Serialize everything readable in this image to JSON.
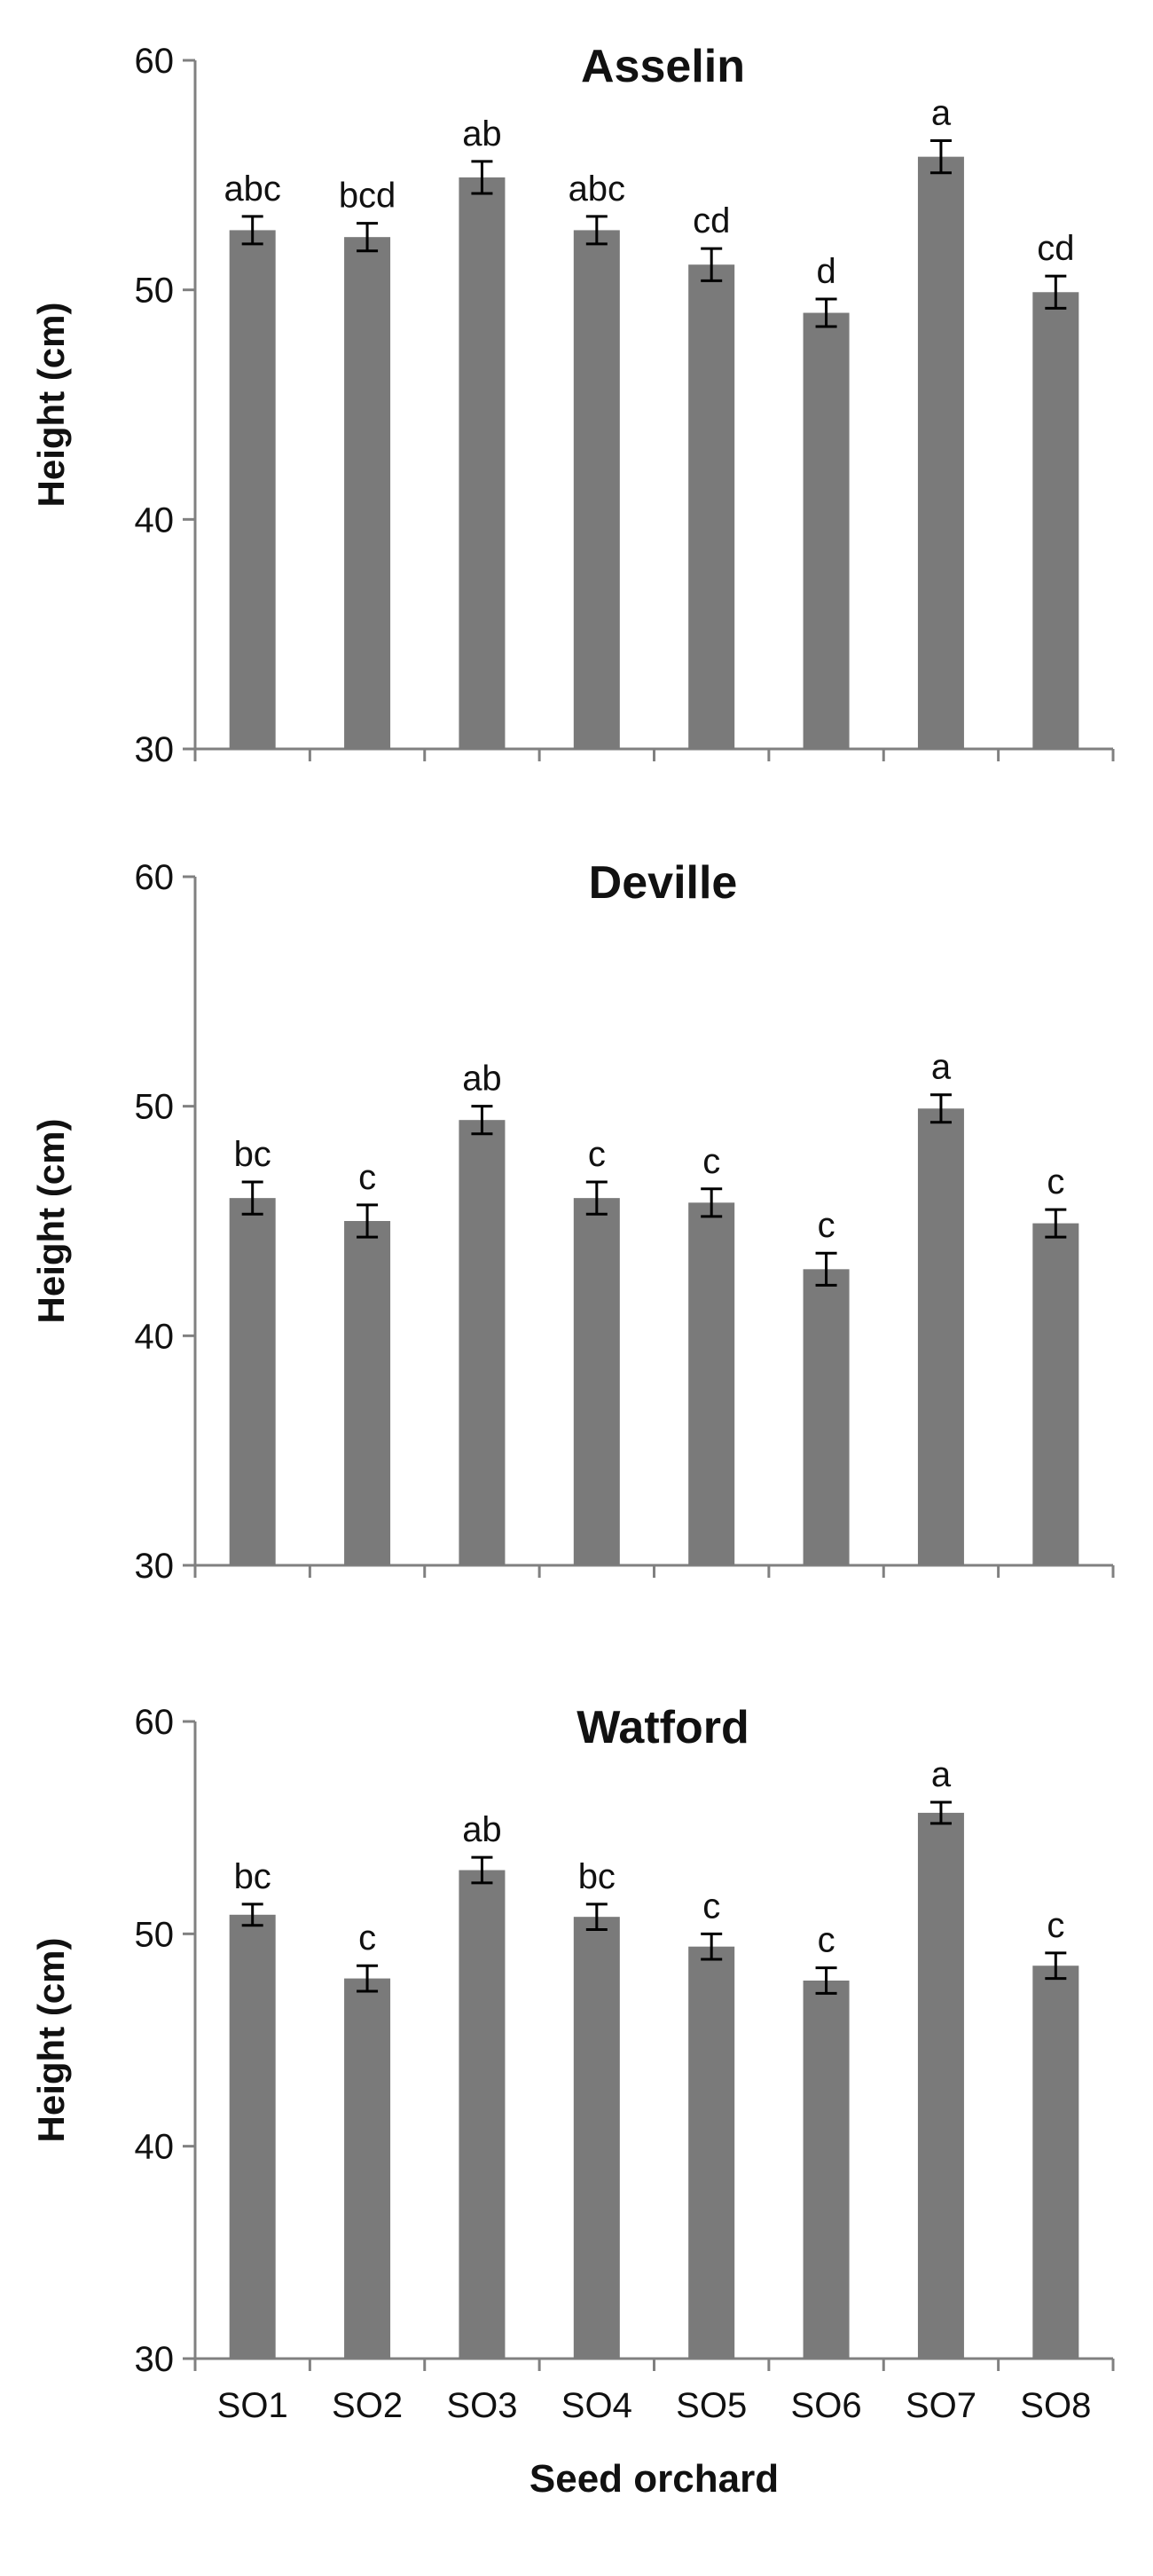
{
  "chart_data": [
    {
      "type": "bar",
      "title": "Asselin",
      "ylabel": "Height (cm)",
      "xlabel": "",
      "ylim": [
        30,
        60
      ],
      "yticks": [
        30,
        40,
        50,
        60
      ],
      "categories": [
        "SO1",
        "SO2",
        "SO3",
        "SO4",
        "SO5",
        "SO6",
        "SO7",
        "SO8"
      ],
      "values": [
        52.6,
        52.3,
        54.9,
        52.6,
        51.1,
        49.0,
        55.8,
        49.9
      ],
      "errors": [
        0.6,
        0.6,
        0.7,
        0.6,
        0.7,
        0.6,
        0.7,
        0.7
      ],
      "annotations": [
        "abc",
        "bcd",
        "ab",
        "abc",
        "cd",
        "d",
        "a",
        "cd"
      ],
      "show_category_labels": false,
      "bar_color": "#7a7a7a"
    },
    {
      "type": "bar",
      "title": "Deville",
      "ylabel": "Height (cm)",
      "xlabel": "",
      "ylim": [
        30,
        60
      ],
      "yticks": [
        30,
        40,
        50,
        60
      ],
      "categories": [
        "SO1",
        "SO2",
        "SO3",
        "SO4",
        "SO5",
        "SO6",
        "SO7",
        "SO8"
      ],
      "values": [
        46.0,
        45.0,
        49.4,
        46.0,
        45.8,
        42.9,
        49.9,
        44.9
      ],
      "errors": [
        0.7,
        0.7,
        0.6,
        0.7,
        0.6,
        0.7,
        0.6,
        0.6
      ],
      "annotations": [
        "bc",
        "c",
        "ab",
        "c",
        "c",
        "c",
        "a",
        "c"
      ],
      "show_category_labels": false,
      "bar_color": "#7a7a7a"
    },
    {
      "type": "bar",
      "title": "Watford",
      "ylabel": "Height (cm)",
      "xlabel": "Seed orchard",
      "ylim": [
        30,
        60
      ],
      "yticks": [
        30,
        40,
        50,
        60
      ],
      "categories": [
        "SO1",
        "SO2",
        "SO3",
        "SO4",
        "SO5",
        "SO6",
        "SO7",
        "SO8"
      ],
      "values": [
        50.9,
        47.9,
        53.0,
        50.8,
        49.4,
        47.8,
        55.7,
        48.5
      ],
      "errors": [
        0.5,
        0.6,
        0.6,
        0.6,
        0.6,
        0.6,
        0.5,
        0.6
      ],
      "annotations": [
        "bc",
        "c",
        "ab",
        "bc",
        "c",
        "c",
        "a",
        "c"
      ],
      "show_category_labels": true,
      "bar_color": "#7a7a7a"
    }
  ]
}
